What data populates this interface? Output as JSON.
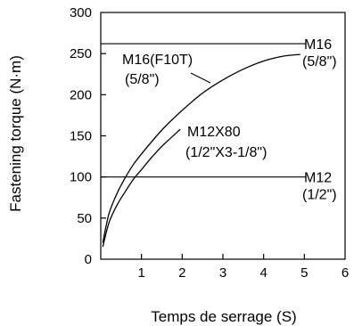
{
  "chart_data": {
    "type": "line",
    "xlabel": "Temps de serrage (S)",
    "ylabel": "Fastening torque (N·m)",
    "xlim": [
      0,
      6
    ],
    "ylim": [
      0,
      300
    ],
    "x_ticks": [
      "1",
      "2",
      "3",
      "4",
      "5",
      "6"
    ],
    "y_ticks": [
      "0",
      "50",
      "100",
      "150",
      "200",
      "250",
      "300"
    ],
    "grid": false,
    "legend": "none",
    "reference_lines": [
      {
        "y": 262,
        "label_line1": "M16",
        "label_line2": "(5/8\")"
      },
      {
        "y": 100,
        "label_line1": "M12",
        "label_line2": "(1/2\")"
      }
    ],
    "series": [
      {
        "label_line1": "M16(F10T)",
        "label_line2": "(5/8\")",
        "x": [
          0.05,
          0.2,
          0.4,
          0.6,
          0.8,
          1.0,
          1.5,
          2.0,
          2.5,
          3.0,
          3.5,
          4.0,
          4.5,
          4.9
        ],
        "y": [
          20,
          55,
          80,
          99,
          115,
          128,
          157,
          181,
          202,
          218,
          231,
          241,
          247,
          249
        ]
      },
      {
        "label_line1": "M12X80",
        "label_line2": "(1/2\"X3-1/8\")",
        "x": [
          0.05,
          0.2,
          0.4,
          0.6,
          0.8,
          1.0,
          1.2,
          1.4,
          1.6,
          1.8,
          1.95
        ],
        "y": [
          15,
          44,
          66,
          82,
          97,
          109,
          121,
          132,
          142,
          151,
          158
        ]
      }
    ]
  }
}
